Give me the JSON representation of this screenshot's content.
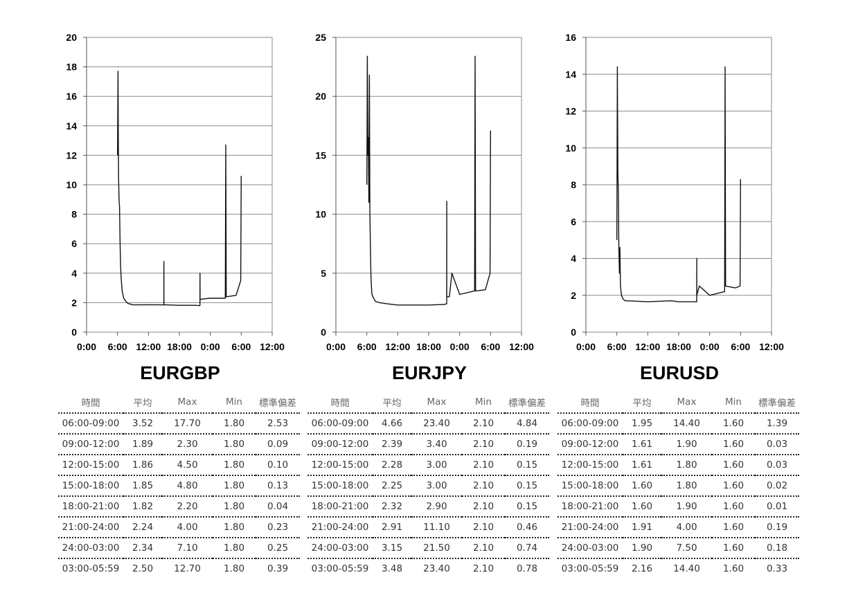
{
  "chart_data": [
    {
      "type": "line",
      "title": "EURGBP",
      "xlabel": "",
      "ylabel": "",
      "x_ticks": [
        "0:00",
        "6:00",
        "12:00",
        "18:00",
        "0:00",
        "6:00",
        "12:00"
      ],
      "xlim": [
        0,
        36
      ],
      "ylim": [
        0,
        20
      ],
      "y_ticks": [
        0,
        2,
        4,
        6,
        8,
        10,
        12,
        14,
        16,
        18,
        20
      ],
      "grid": true,
      "series": [
        {
          "x": [
            6.0,
            6.1,
            6.15,
            6.2,
            6.3,
            6.4,
            6.5,
            6.6,
            6.7,
            6.9,
            7.2,
            7.6,
            8.0,
            9.0,
            12.0,
            14.99,
            15.0,
            15.01,
            15.5,
            18.0,
            21.0,
            21.99,
            22.0,
            22.01,
            22.5,
            24.0,
            26.9,
            27.0,
            27.1,
            29.0,
            29.9,
            30.0
          ],
          "y": [
            12.0,
            17.7,
            13.5,
            10.5,
            9.0,
            8.5,
            6.0,
            4.5,
            3.7,
            2.8,
            2.3,
            2.1,
            1.95,
            1.85,
            1.86,
            1.85,
            4.8,
            1.85,
            1.85,
            1.82,
            1.82,
            1.8,
            4.0,
            2.2,
            2.25,
            2.3,
            2.3,
            12.7,
            2.4,
            2.5,
            3.5,
            10.6
          ]
        }
      ]
    },
    {
      "type": "line",
      "title": "EURJPY",
      "xlabel": "",
      "ylabel": "",
      "x_ticks": [
        "0:00",
        "6:00",
        "12:00",
        "18:00",
        "0:00",
        "6:00",
        "12:00"
      ],
      "xlim": [
        0,
        36
      ],
      "ylim": [
        0,
        25
      ],
      "y_ticks": [
        0,
        5,
        10,
        15,
        20,
        25
      ],
      "grid": true,
      "series": [
        {
          "x": [
            6.0,
            6.1,
            6.2,
            6.3,
            6.4,
            6.5,
            6.6,
            6.7,
            6.8,
            6.9,
            7.0,
            7.3,
            7.7,
            8.5,
            10.0,
            12.0,
            18.0,
            21.0,
            21.49,
            21.5,
            21.51,
            22.0,
            22.5,
            24.0,
            26.9,
            27.0,
            27.1,
            29.0,
            29.9,
            30.0
          ],
          "y": [
            12.5,
            23.4,
            15.0,
            16.5,
            11.0,
            21.8,
            10.0,
            7.0,
            4.8,
            3.8,
            3.2,
            2.9,
            2.6,
            2.5,
            2.4,
            2.3,
            2.3,
            2.35,
            2.4,
            11.1,
            3.0,
            3.0,
            5.0,
            3.2,
            3.5,
            23.4,
            3.5,
            3.6,
            5.0,
            17.1
          ]
        }
      ]
    },
    {
      "type": "line",
      "title": "EURUSD",
      "xlabel": "",
      "ylabel": "",
      "x_ticks": [
        "0:00",
        "6:00",
        "12:00",
        "18:00",
        "0:00",
        "6:00",
        "12:00"
      ],
      "xlim": [
        0,
        36
      ],
      "ylim": [
        0,
        16
      ],
      "y_ticks": [
        0,
        2,
        4,
        6,
        8,
        10,
        12,
        14,
        16
      ],
      "grid": true,
      "series": [
        {
          "x": [
            6.0,
            6.1,
            6.2,
            6.3,
            6.4,
            6.5,
            6.6,
            6.7,
            6.9,
            7.2,
            7.6,
            8.0,
            12.0,
            16.5,
            18.0,
            20.0,
            21.49,
            21.5,
            21.51,
            22.0,
            24.0,
            26.9,
            27.0,
            27.1,
            29.0,
            29.9,
            30.0
          ],
          "y": [
            5.0,
            14.4,
            8.6,
            7.5,
            4.5,
            3.2,
            4.6,
            2.5,
            2.0,
            1.8,
            1.7,
            1.7,
            1.65,
            1.7,
            1.65,
            1.65,
            1.65,
            4.0,
            2.0,
            2.5,
            2.0,
            2.2,
            14.4,
            2.5,
            2.4,
            2.5,
            8.3
          ]
        }
      ]
    }
  ],
  "tables": [
    {
      "headers": [
        "時間",
        "平均",
        "Max",
        "Min",
        "標準偏差"
      ],
      "rows": [
        [
          "06:00-09:00",
          "3.52",
          "17.70",
          "1.80",
          "2.53"
        ],
        [
          "09:00-12:00",
          "1.89",
          "2.30",
          "1.80",
          "0.09"
        ],
        [
          "12:00-15:00",
          "1.86",
          "4.50",
          "1.80",
          "0.10"
        ],
        [
          "15:00-18:00",
          "1.85",
          "4.80",
          "1.80",
          "0.13"
        ],
        [
          "18:00-21:00",
          "1.82",
          "2.20",
          "1.80",
          "0.04"
        ],
        [
          "21:00-24:00",
          "2.24",
          "4.00",
          "1.80",
          "0.23"
        ],
        [
          "24:00-03:00",
          "2.34",
          "7.10",
          "1.80",
          "0.25"
        ],
        [
          "03:00-05:59",
          "2.50",
          "12.70",
          "1.80",
          "0.39"
        ]
      ]
    },
    {
      "headers": [
        "時間",
        "平均",
        "Max",
        "Min",
        "標準偏差"
      ],
      "rows": [
        [
          "06:00-09:00",
          "4.66",
          "23.40",
          "2.10",
          "4.84"
        ],
        [
          "09:00-12:00",
          "2.39",
          "3.40",
          "2.10",
          "0.19"
        ],
        [
          "12:00-15:00",
          "2.28",
          "3.00",
          "2.10",
          "0.15"
        ],
        [
          "15:00-18:00",
          "2.25",
          "3.00",
          "2.10",
          "0.15"
        ],
        [
          "18:00-21:00",
          "2.32",
          "2.90",
          "2.10",
          "0.15"
        ],
        [
          "21:00-24:00",
          "2.91",
          "11.10",
          "2.10",
          "0.46"
        ],
        [
          "24:00-03:00",
          "3.15",
          "21.50",
          "2.10",
          "0.74"
        ],
        [
          "03:00-05:59",
          "3.48",
          "23.40",
          "2.10",
          "0.78"
        ]
      ]
    },
    {
      "headers": [
        "時間",
        "平均",
        "Max",
        "Min",
        "標準偏差"
      ],
      "rows": [
        [
          "06:00-09:00",
          "1.95",
          "14.40",
          "1.60",
          "1.39"
        ],
        [
          "09:00-12:00",
          "1.61",
          "1.90",
          "1.60",
          "0.03"
        ],
        [
          "12:00-15:00",
          "1.61",
          "1.80",
          "1.60",
          "0.03"
        ],
        [
          "15:00-18:00",
          "1.60",
          "1.80",
          "1.60",
          "0.02"
        ],
        [
          "18:00-21:00",
          "1.60",
          "1.90",
          "1.60",
          "0.01"
        ],
        [
          "21:00-24:00",
          "1.91",
          "4.00",
          "1.60",
          "0.19"
        ],
        [
          "24:00-03:00",
          "1.90",
          "7.50",
          "1.60",
          "0.18"
        ],
        [
          "03:00-05:59",
          "2.16",
          "14.40",
          "1.60",
          "0.33"
        ]
      ]
    }
  ]
}
